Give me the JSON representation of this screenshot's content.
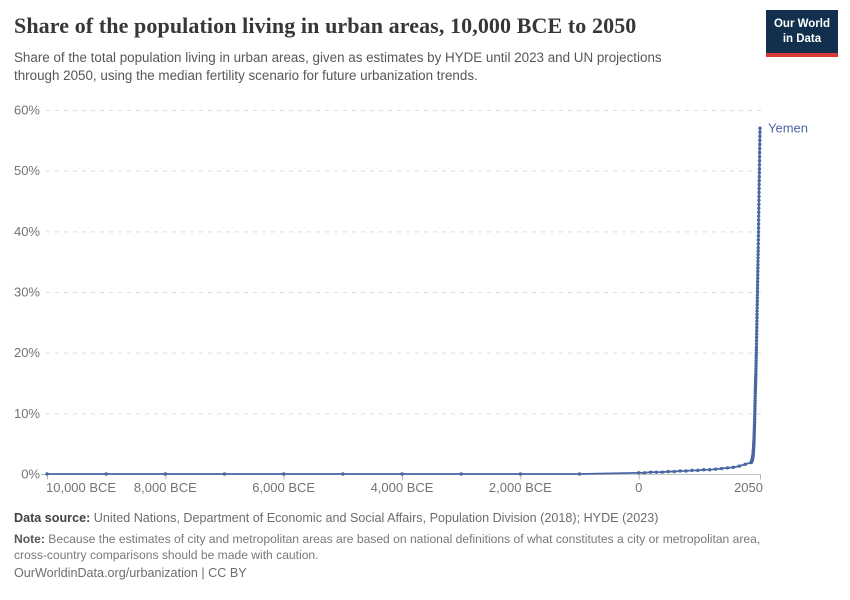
{
  "header": {
    "title": "Share of the population living in urban areas, 10,000 BCE to 2050",
    "subtitle_lines": [
      "Share of the total population living in urban areas, given as estimates by HYDE until 2023 and UN projections",
      "through 2050, using the median fertility scenario for future urbanization trends."
    ],
    "logo": {
      "line1": "Our World",
      "line2": "in Data",
      "bg_color": "#12304d",
      "accent_color": "#d7383a"
    }
  },
  "chart_data": {
    "type": "line",
    "title": "Share of the population living in urban areas, 10,000 BCE to 2050",
    "entity_label": "Yemen",
    "line_color": "#4a67a3",
    "grid_color": "#dcdcdc",
    "axis_color": "#c6c6c6",
    "tick_text_color": "#737373",
    "x_axis": {
      "min": -10000,
      "max": 2050,
      "tick_values": [
        -10000,
        -8000,
        -6000,
        -4000,
        -2000,
        0,
        2050
      ],
      "tick_labels": [
        "10,000 BCE",
        "8,000 BCE",
        "6,000 BCE",
        "4,000 BCE",
        "2,000 BCE",
        "0",
        "2050"
      ]
    },
    "y_axis": {
      "min": 0,
      "max": 60,
      "unit": "%",
      "tick_values": [
        0,
        10,
        20,
        30,
        40,
        50,
        60
      ],
      "tick_labels": [
        "0%",
        "10%",
        "20%",
        "30%",
        "40%",
        "50%",
        "60%"
      ],
      "gridlines": "dashed"
    },
    "series": [
      {
        "name": "Yemen",
        "points": [
          [
            -10000,
            0
          ],
          [
            -9000,
            0
          ],
          [
            -8000,
            0
          ],
          [
            -7000,
            0
          ],
          [
            -6000,
            0
          ],
          [
            -5000,
            0
          ],
          [
            -4000,
            0
          ],
          [
            -3000,
            0
          ],
          [
            -2000,
            0
          ],
          [
            -1000,
            0
          ],
          [
            0,
            0.2
          ],
          [
            100,
            0.2
          ],
          [
            200,
            0.3
          ],
          [
            300,
            0.3
          ],
          [
            400,
            0.3
          ],
          [
            500,
            0.4
          ],
          [
            600,
            0.4
          ],
          [
            700,
            0.5
          ],
          [
            800,
            0.5
          ],
          [
            900,
            0.6
          ],
          [
            1000,
            0.6
          ],
          [
            1100,
            0.7
          ],
          [
            1200,
            0.7
          ],
          [
            1300,
            0.8
          ],
          [
            1400,
            0.9
          ],
          [
            1500,
            1.0
          ],
          [
            1600,
            1.1
          ],
          [
            1700,
            1.3
          ],
          [
            1800,
            1.6
          ],
          [
            1900,
            1.9
          ],
          [
            1910,
            2.1
          ],
          [
            1920,
            2.4
          ],
          [
            1930,
            2.9
          ],
          [
            1940,
            4.0
          ],
          [
            1950,
            5.8
          ],
          [
            1960,
            9.1
          ],
          [
            1970,
            13.3
          ],
          [
            1980,
            16.5
          ],
          [
            1990,
            20.9
          ],
          [
            2000,
            26.3
          ],
          [
            2010,
            31.7
          ],
          [
            2020,
            37.3
          ],
          [
            2030,
            43.8
          ],
          [
            2040,
            50.3
          ],
          [
            2050,
            57.0
          ]
        ]
      }
    ]
  },
  "footer": {
    "data_source_label": "Data source:",
    "data_source": "United Nations, Department of Economic and Social Affairs, Population Division (2018); HYDE (2023)",
    "note_label": "Note:",
    "note_lines": [
      "Because the estimates of city and metropolitan areas are based on national definitions of what constitutes a city or metropolitan area,",
      "cross-country comparisons should be made with caution."
    ],
    "citation": "OurWorldinData.org/urbanization | CC BY"
  }
}
